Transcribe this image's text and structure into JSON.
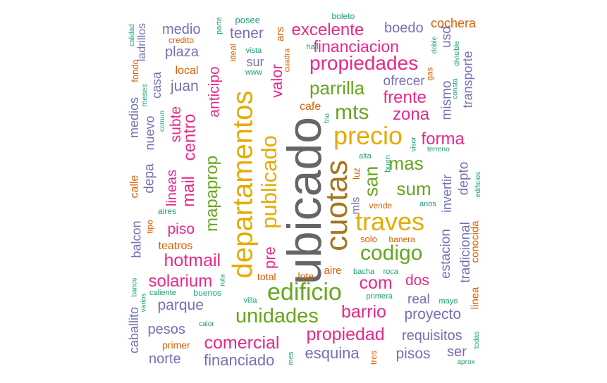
{
  "palette": {
    "gray": "#666666",
    "gold": "#e6ab02",
    "magenta": "#e7298a",
    "green": "#66a61e",
    "purple": "#7570b3",
    "orange": "#d95f02",
    "teal": "#1b9e77",
    "brown": "#a6761d"
  },
  "words": [
    {
      "text": "ubicado",
      "color": "gray"
    },
    {
      "text": "departamentos",
      "color": "gold"
    },
    {
      "text": "cuotas",
      "color": "brown"
    },
    {
      "text": "precio",
      "color": "gold"
    },
    {
      "text": "publicado",
      "color": "gold"
    },
    {
      "text": "traves",
      "color": "gold"
    },
    {
      "text": "codigo",
      "color": "green"
    },
    {
      "text": "edificio",
      "color": "green"
    },
    {
      "text": "unidades",
      "color": "green"
    },
    {
      "text": "propiedades",
      "color": "magenta"
    },
    {
      "text": "parrilla",
      "color": "green"
    },
    {
      "text": "mts",
      "color": "green"
    },
    {
      "text": "san",
      "color": "green"
    },
    {
      "text": "sum",
      "color": "green"
    },
    {
      "text": "mas",
      "color": "green"
    },
    {
      "text": "mapaprop",
      "color": "green"
    },
    {
      "text": "centro",
      "color": "magenta"
    },
    {
      "text": "mail",
      "color": "magenta"
    },
    {
      "text": "hotmail",
      "color": "magenta"
    },
    {
      "text": "solarium",
      "color": "magenta"
    },
    {
      "text": "comercial",
      "color": "magenta"
    },
    {
      "text": "propiedad",
      "color": "magenta"
    },
    {
      "text": "barrio",
      "color": "magenta"
    },
    {
      "text": "com",
      "color": "magenta"
    },
    {
      "text": "frente",
      "color": "magenta"
    },
    {
      "text": "zona",
      "color": "magenta"
    },
    {
      "text": "forma",
      "color": "magenta"
    },
    {
      "text": "excelente",
      "color": "magenta"
    },
    {
      "text": "financiacion",
      "color": "magenta"
    },
    {
      "text": "valor",
      "color": "magenta"
    },
    {
      "text": "anticipo",
      "color": "magenta"
    },
    {
      "text": "subte",
      "color": "magenta"
    },
    {
      "text": "lineas",
      "color": "magenta"
    },
    {
      "text": "piso",
      "color": "magenta"
    },
    {
      "text": "dos",
      "color": "magenta"
    },
    {
      "text": "pre",
      "color": "magenta"
    },
    {
      "text": "boedo",
      "color": "purple"
    },
    {
      "text": "tener",
      "color": "purple"
    },
    {
      "text": "medio",
      "color": "purple"
    },
    {
      "text": "plaza",
      "color": "purple"
    },
    {
      "text": "juan",
      "color": "purple"
    },
    {
      "text": "casa",
      "color": "purple"
    },
    {
      "text": "ladrillos",
      "color": "purple"
    },
    {
      "text": "nuevo",
      "color": "purple"
    },
    {
      "text": "medios",
      "color": "purple"
    },
    {
      "text": "depa",
      "color": "purple"
    },
    {
      "text": "balcon",
      "color": "purple"
    },
    {
      "text": "parque",
      "color": "purple"
    },
    {
      "text": "pesos",
      "color": "purple"
    },
    {
      "text": "caballito",
      "color": "purple"
    },
    {
      "text": "norte",
      "color": "purple"
    },
    {
      "text": "financiado",
      "color": "purple"
    },
    {
      "text": "esquina",
      "color": "purple"
    },
    {
      "text": "pisos",
      "color": "purple"
    },
    {
      "text": "ser",
      "color": "purple"
    },
    {
      "text": "requisitos",
      "color": "purple"
    },
    {
      "text": "proyecto",
      "color": "purple"
    },
    {
      "text": "real",
      "color": "purple"
    },
    {
      "text": "estacion",
      "color": "purple"
    },
    {
      "text": "tradicional",
      "color": "purple"
    },
    {
      "text": "depto",
      "color": "purple"
    },
    {
      "text": "invertir",
      "color": "purple"
    },
    {
      "text": "mismo",
      "color": "purple"
    },
    {
      "text": "usd",
      "color": "purple"
    },
    {
      "text": "transporte",
      "color": "purple"
    },
    {
      "text": "ofrecer",
      "color": "purple"
    },
    {
      "text": "sur",
      "color": "purple"
    },
    {
      "text": "mls",
      "color": "purple"
    },
    {
      "text": "cochera",
      "color": "orange"
    },
    {
      "text": "ars",
      "color": "orange"
    },
    {
      "text": "local",
      "color": "orange"
    },
    {
      "text": "cafe",
      "color": "orange"
    },
    {
      "text": "calle",
      "color": "orange"
    },
    {
      "text": "teatros",
      "color": "orange"
    },
    {
      "text": "primer",
      "color": "orange"
    },
    {
      "text": "total",
      "color": "orange"
    },
    {
      "text": "lote",
      "color": "orange"
    },
    {
      "text": "aire",
      "color": "orange"
    },
    {
      "text": "conocida",
      "color": "orange"
    },
    {
      "text": "linea",
      "color": "orange"
    },
    {
      "text": "luz",
      "color": "orange"
    },
    {
      "text": "vende",
      "color": "orange"
    },
    {
      "text": "solo",
      "color": "orange"
    },
    {
      "text": "banera",
      "color": "orange"
    },
    {
      "text": "tipo",
      "color": "orange"
    },
    {
      "text": "fondo",
      "color": "orange"
    },
    {
      "text": "gas",
      "color": "orange"
    },
    {
      "text": "credito",
      "color": "orange"
    },
    {
      "text": "ideal",
      "color": "orange"
    },
    {
      "text": "cuadra",
      "color": "orange"
    },
    {
      "text": "tres",
      "color": "orange"
    },
    {
      "text": "posee",
      "color": "teal"
    },
    {
      "text": "boleto",
      "color": "teal"
    },
    {
      "text": "parte",
      "color": "teal"
    },
    {
      "text": "calidad",
      "color": "teal"
    },
    {
      "text": "vista",
      "color": "teal"
    },
    {
      "text": "hall",
      "color": "teal"
    },
    {
      "text": "www",
      "color": "teal"
    },
    {
      "text": "meses",
      "color": "teal"
    },
    {
      "text": "comun",
      "color": "teal"
    },
    {
      "text": "frio",
      "color": "teal"
    },
    {
      "text": "alta",
      "color": "teal"
    },
    {
      "text": "buen",
      "color": "teal"
    },
    {
      "text": "visor",
      "color": "teal"
    },
    {
      "text": "terreno",
      "color": "teal"
    },
    {
      "text": "aires",
      "color": "teal"
    },
    {
      "text": "anos",
      "color": "teal"
    },
    {
      "text": "edificios",
      "color": "teal"
    },
    {
      "text": "bacha",
      "color": "teal"
    },
    {
      "text": "roca",
      "color": "teal"
    },
    {
      "text": "primera",
      "color": "teal"
    },
    {
      "text": "mayo",
      "color": "teal"
    },
    {
      "text": "banos",
      "color": "teal"
    },
    {
      "text": "varios",
      "color": "teal"
    },
    {
      "text": "caliente",
      "color": "teal"
    },
    {
      "text": "buenos",
      "color": "teal"
    },
    {
      "text": "ruta",
      "color": "teal"
    },
    {
      "text": "villa",
      "color": "teal"
    },
    {
      "text": "calor",
      "color": "teal"
    },
    {
      "text": "mes",
      "color": "teal"
    },
    {
      "text": "todas",
      "color": "teal"
    },
    {
      "text": "aprox",
      "color": "teal"
    },
    {
      "text": "doble",
      "color": "teal"
    },
    {
      "text": "divisible",
      "color": "teal"
    },
    {
      "text": "consta",
      "color": "teal"
    }
  ]
}
